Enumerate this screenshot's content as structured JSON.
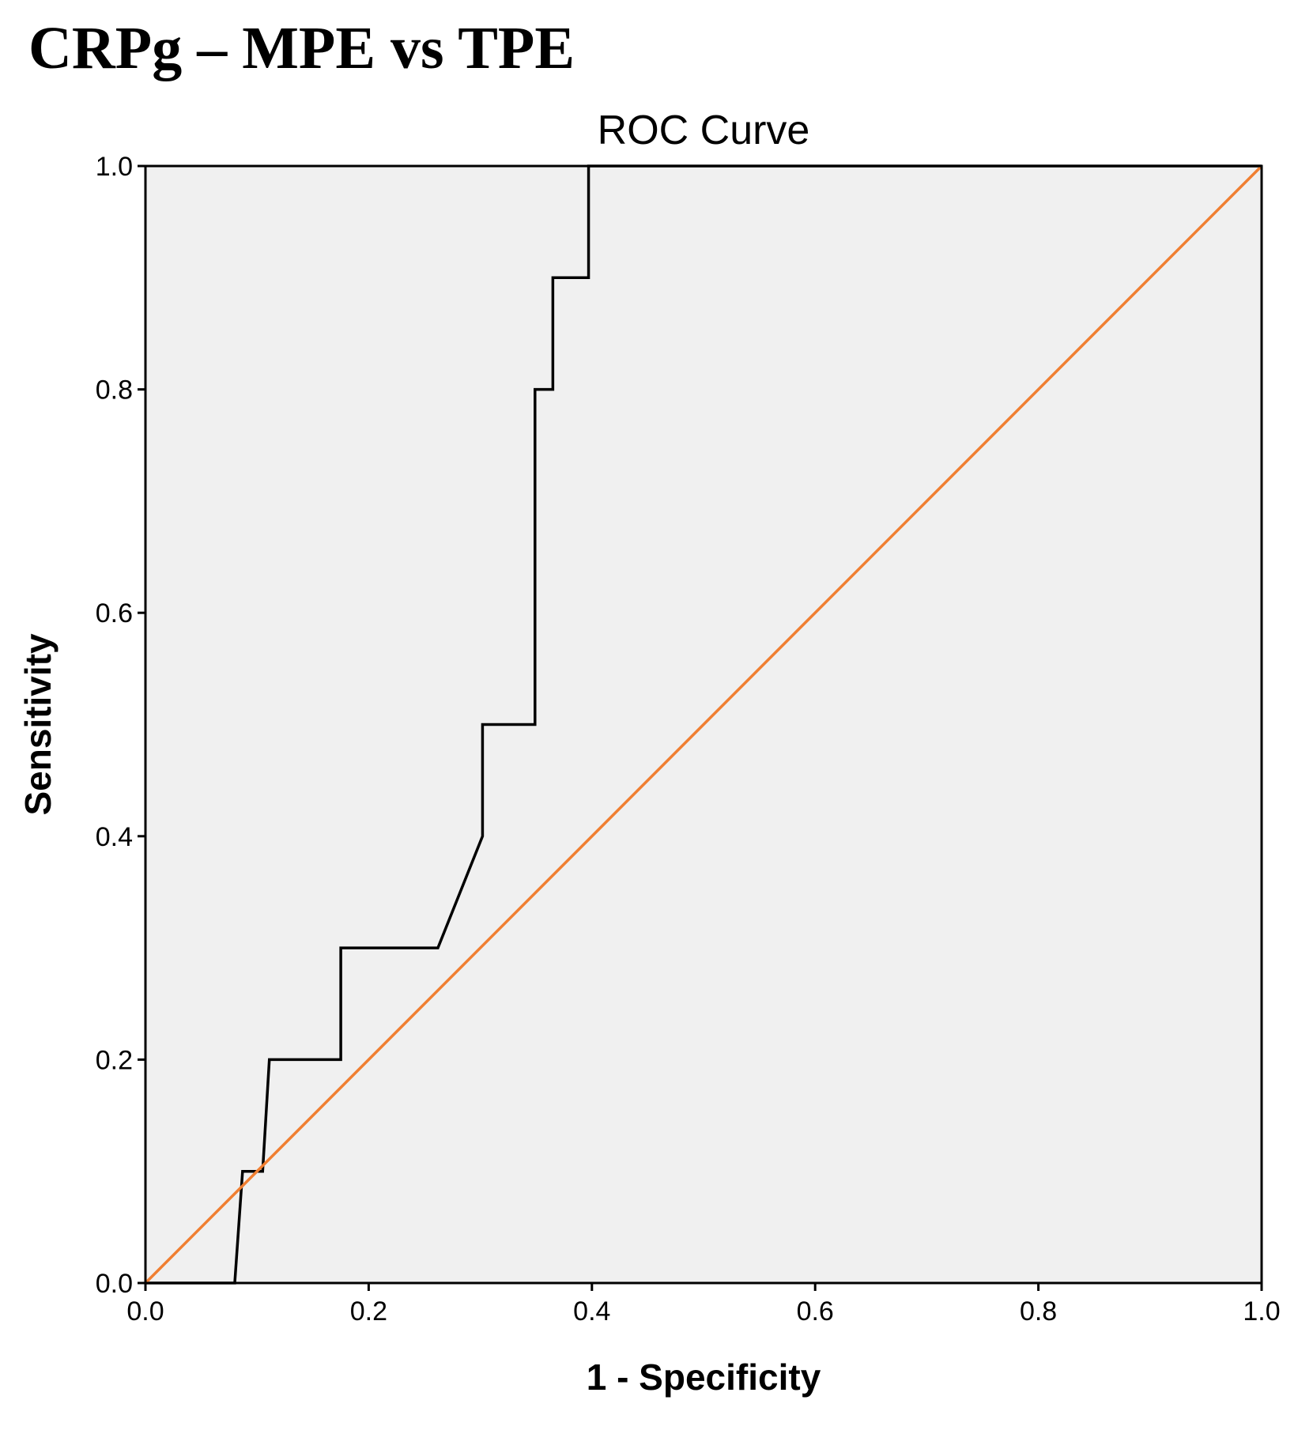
{
  "heading": "CRPg – MPE vs TPE",
  "chart_data": {
    "type": "line",
    "title": "ROC Curve",
    "xlabel": "1 - Specificity",
    "ylabel": "Sensitivity",
    "xlim": [
      0,
      1
    ],
    "ylim": [
      0,
      1
    ],
    "x_ticks": [
      "0.0",
      "0.2",
      "0.4",
      "0.6",
      "0.8",
      "1.0"
    ],
    "y_ticks": [
      "0.0",
      "0.2",
      "0.4",
      "0.6",
      "0.8",
      "1.0"
    ],
    "grid": false,
    "legend": "none",
    "plot_background": "#f0f0f0",
    "series": [
      {
        "color": "#000000",
        "points": [
          [
            0.0,
            0.0
          ],
          [
            0.08,
            0.0
          ],
          [
            0.087,
            0.1
          ],
          [
            0.105,
            0.1
          ],
          [
            0.111,
            0.2
          ],
          [
            0.175,
            0.2
          ],
          [
            0.175,
            0.3
          ],
          [
            0.262,
            0.3
          ],
          [
            0.302,
            0.4
          ],
          [
            0.302,
            0.5
          ],
          [
            0.349,
            0.5
          ],
          [
            0.349,
            0.8
          ],
          [
            0.365,
            0.8
          ],
          [
            0.365,
            0.9
          ],
          [
            0.397,
            0.9
          ],
          [
            0.397,
            1.0
          ],
          [
            1.0,
            1.0
          ]
        ]
      },
      {
        "color": "#f07f32",
        "points": [
          [
            0.0,
            0.0
          ],
          [
            1.0,
            1.0
          ]
        ]
      }
    ]
  }
}
